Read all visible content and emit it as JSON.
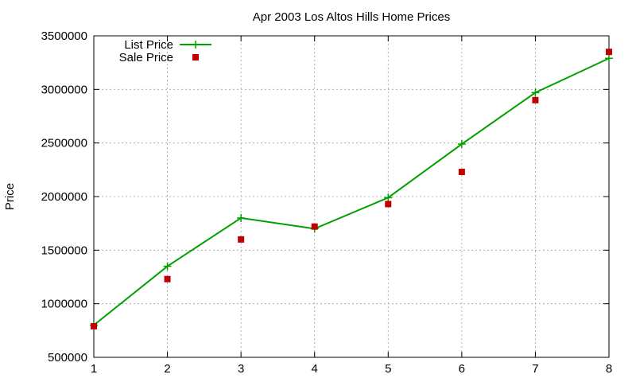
{
  "chart_data": {
    "type": "line",
    "title": "Apr 2003 Los Altos Hills Home Prices",
    "xlabel": "",
    "ylabel": "Price",
    "x": [
      1,
      2,
      3,
      4,
      5,
      6,
      7,
      8
    ],
    "xlim": [
      1,
      8
    ],
    "ylim": [
      500000,
      3500000
    ],
    "xticks": [
      1,
      2,
      3,
      4,
      5,
      6,
      7,
      8
    ],
    "yticks": [
      500000,
      1000000,
      1500000,
      2000000,
      2500000,
      3000000,
      3500000
    ],
    "grid": true,
    "legend_position": "top-left",
    "series": [
      {
        "name": "List Price",
        "style": "lines+points",
        "marker": "plus",
        "color": "#00a000",
        "values": [
          800000,
          1350000,
          1800000,
          1700000,
          1990000,
          2490000,
          2970000,
          3290000
        ]
      },
      {
        "name": "Sale Price",
        "style": "points",
        "marker": "square",
        "color": "#c00000",
        "values": [
          790000,
          1230000,
          1600000,
          1720000,
          1930000,
          2230000,
          2900000,
          3350000
        ]
      }
    ]
  }
}
